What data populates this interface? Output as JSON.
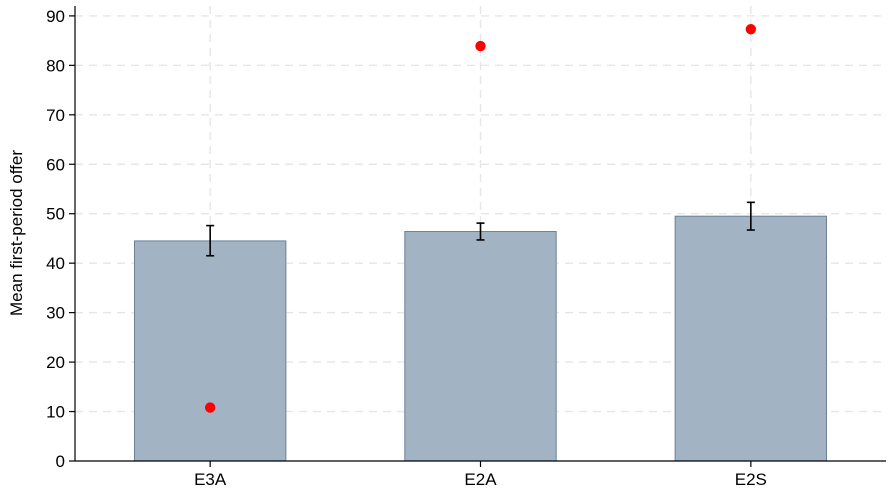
{
  "chart_data": {
    "type": "bar",
    "title": "",
    "xlabel": "",
    "ylabel": "Mean first-period offer",
    "categories": [
      "E3A",
      "E2A",
      "E2S"
    ],
    "ylim": [
      0,
      92
    ],
    "yticks": [
      0,
      10,
      20,
      30,
      40,
      50,
      60,
      70,
      80,
      90
    ],
    "grid": true,
    "series": [
      {
        "type": "bar",
        "values": [
          44.5,
          46.4,
          49.5
        ],
        "error_low": [
          41.5,
          44.7,
          46.7
        ],
        "error_high": [
          47.6,
          48.1,
          52.3
        ],
        "color": "#a2b3c4",
        "edge_color": "#6b8096"
      },
      {
        "type": "scatter",
        "values": [
          10.8,
          83.9,
          87.3
        ],
        "color": "#ff0000"
      }
    ]
  }
}
